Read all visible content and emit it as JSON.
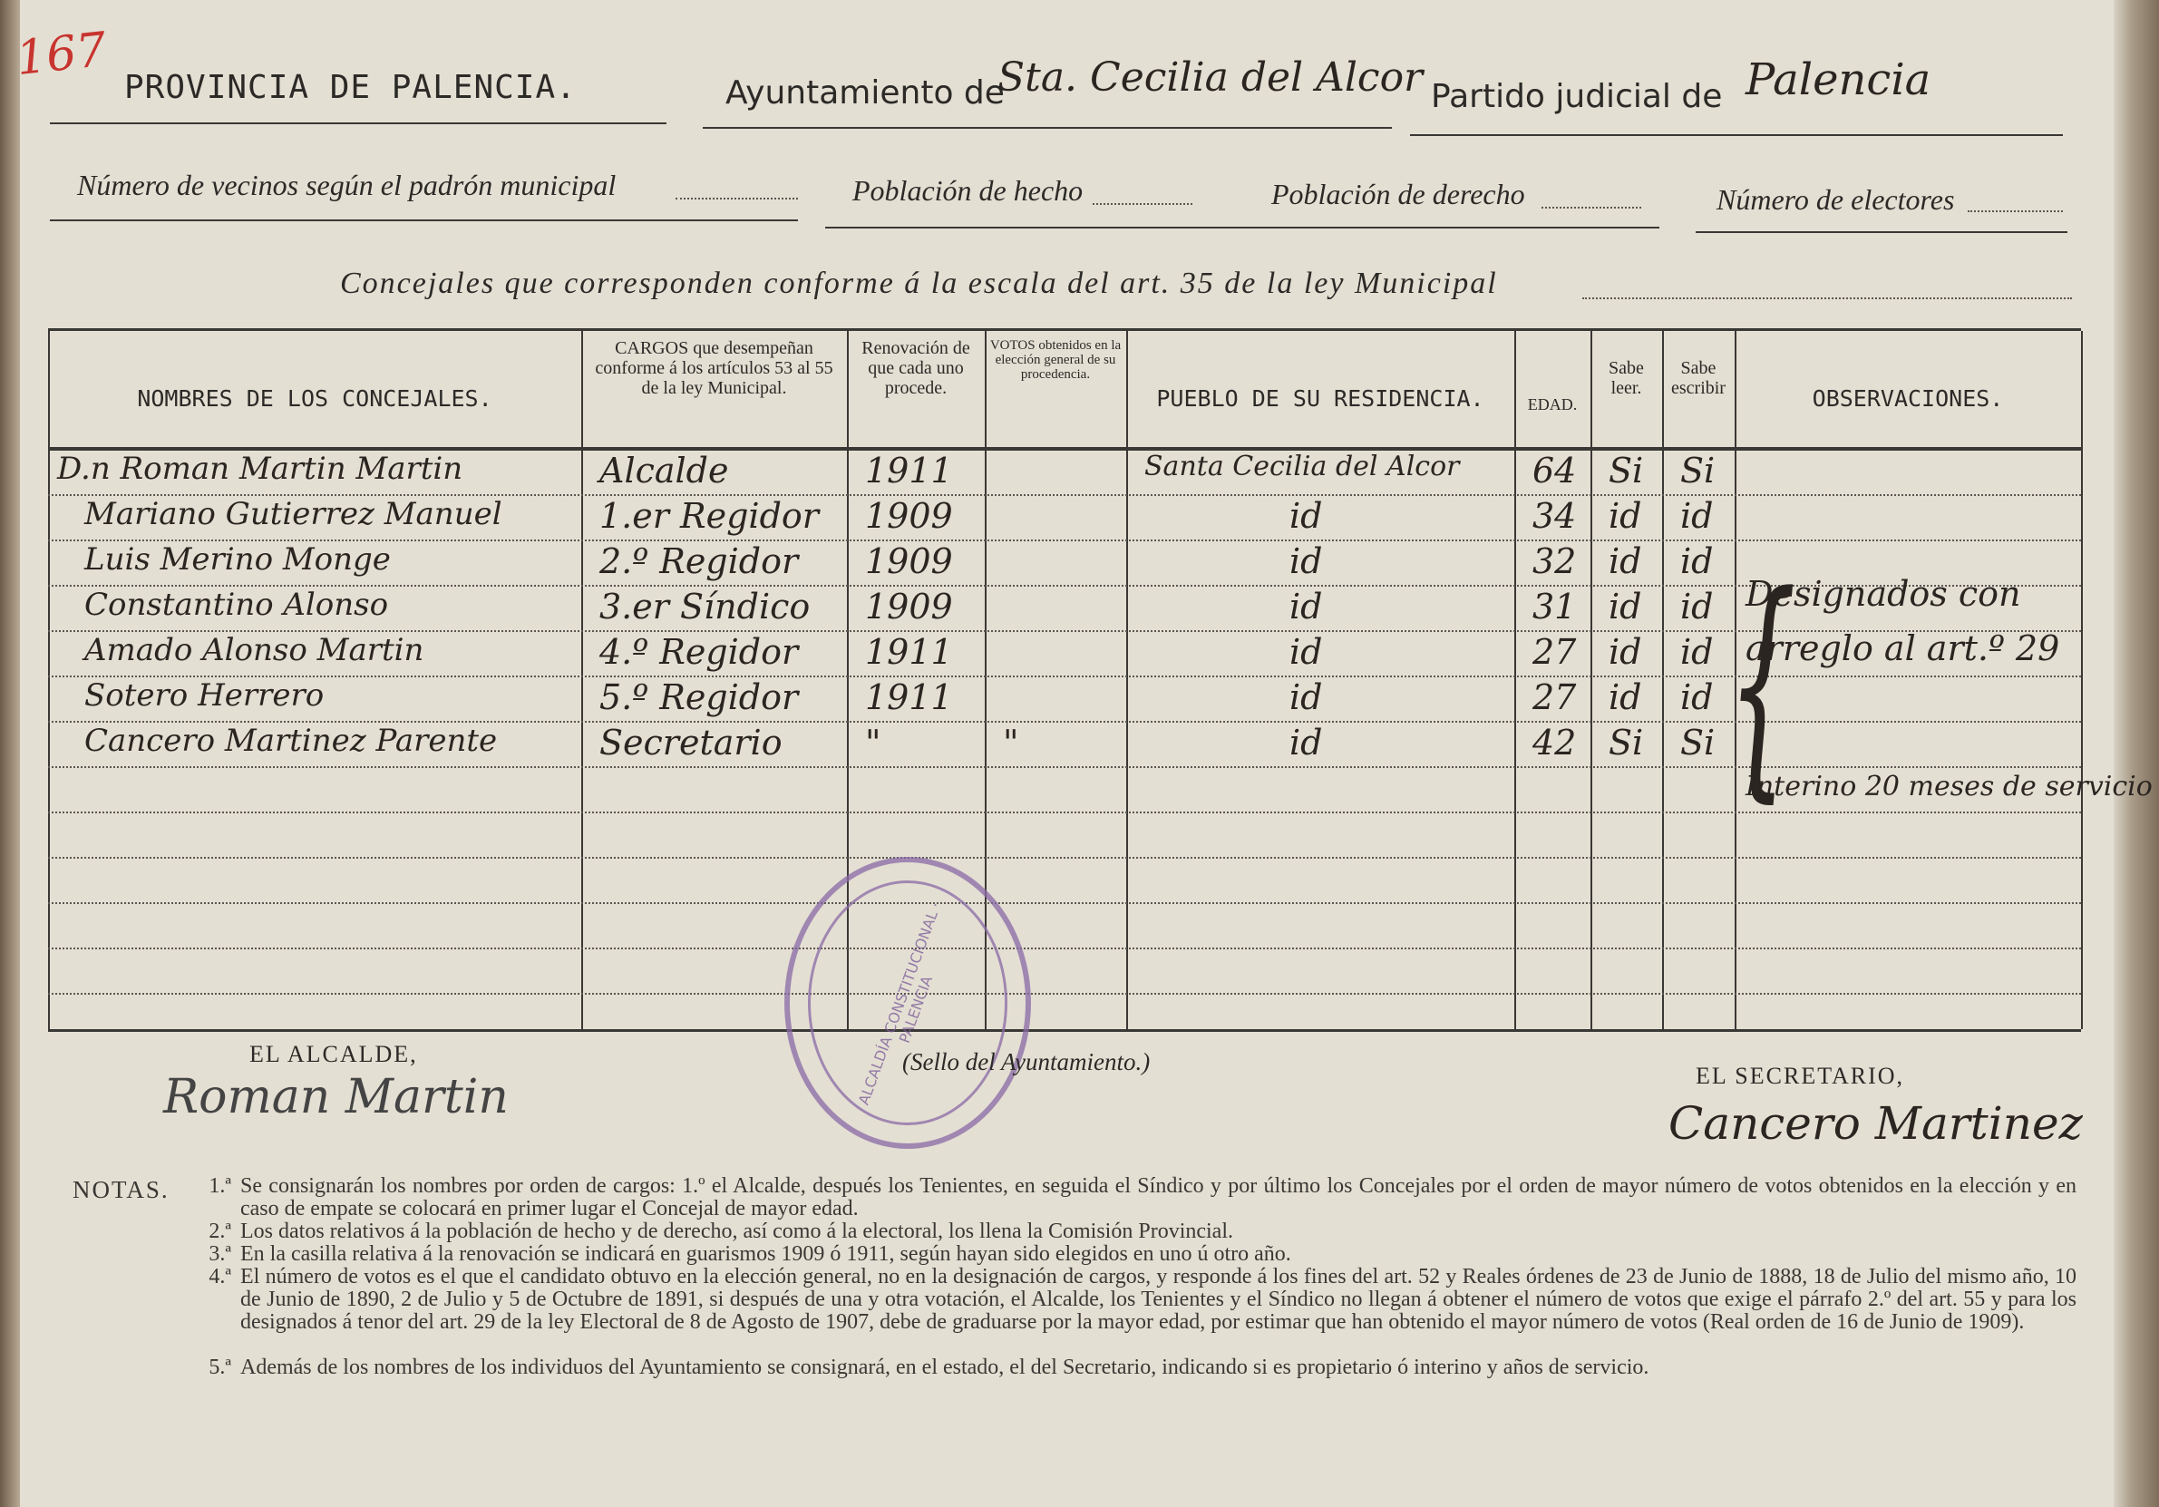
{
  "page_number": "167",
  "header": {
    "provincia": "PROVINCIA DE PALENCIA.",
    "ayuntamiento_label": "Ayuntamiento de",
    "ayuntamiento_value": "Sta. Cecilia del Alcor",
    "partido_label": "Partido judicial de",
    "partido_value": "Palencia",
    "vecinos_label": "Número de vecinos según el padrón municipal",
    "hecho_label": "Población de hecho",
    "derecho_label": "Población de derecho",
    "electores_label": "Número de electores",
    "concejales_label": "Concejales que corresponden conforme á la escala del art. 35 de la ley Municipal"
  },
  "table": {
    "columns": [
      "NOMBRES DE LOS CONCEJALES.",
      "CARGOS que desempeñan conforme á los artículos 53 al 55 de la ley Municipal.",
      "Renovación de que cada uno procede.",
      "VOTOS obtenidos en la elección general de su procedencia.",
      "PUEBLO DE SU RESIDENCIA.",
      "EDAD.",
      "Sabe leer.",
      "Sabe escribir",
      "OBSERVACIONES."
    ],
    "rows": [
      [
        "D.n Roman Martin Martin",
        "Alcalde",
        "1911",
        "",
        "Santa Cecilia del Alcor",
        "64",
        "Si",
        "Si"
      ],
      [
        "Mariano Gutierrez Manuel",
        "1.er Regidor",
        "1909",
        "",
        "id",
        "34",
        "id",
        "id"
      ],
      [
        "Luis Merino Monge",
        "2.º Regidor",
        "1909",
        "",
        "id",
        "32",
        "id",
        "id"
      ],
      [
        "Constantino Alonso",
        "3.er Síndico",
        "1909",
        "",
        "id",
        "31",
        "id",
        "id"
      ],
      [
        "Amado Alonso Martin",
        "4.º Regidor",
        "1911",
        "",
        "id",
        "27",
        "id",
        "id"
      ],
      [
        "Sotero Herrero",
        "5.º Regidor",
        "1911",
        "",
        "id",
        "27",
        "id",
        "id"
      ],
      [
        "Cancero Martinez Parente",
        "Secretario",
        "\"",
        "\"",
        "id",
        "42",
        "Si",
        "Si"
      ]
    ],
    "observation_bracket": "Designados con arreglo al art.º 29",
    "observation_secretary": "Interino 20 meses de servicio"
  },
  "signatures": {
    "alcalde_label": "EL ALCALDE,",
    "alcalde_signature": "Roman Martin",
    "sello_label": "(Sello del Ayuntamiento.)",
    "stamp_text": "ALCALDÍA CONSTITUCIONAL · PALENCIA",
    "secretario_label": "EL SECRETARIO,",
    "secretario_signature": "Cancero Martinez"
  },
  "notes": {
    "label": "NOTAS.",
    "items": [
      {
        "n": "1.ª",
        "text": "Se consignarán los nombres por orden de cargos: 1.º el Alcalde, después los Tenientes, en seguida el Síndico y por último los Concejales por el orden de mayor número de votos obtenidos en la elección y en caso de empate se colocará en primer lugar el Concejal de mayor edad."
      },
      {
        "n": "2.ª",
        "text": "Los datos relativos á la población de hecho y de derecho, así como á la electoral, los llena la Comisión Provincial."
      },
      {
        "n": "3.ª",
        "text": "En la casilla relativa á la renovación se indicará en guarismos 1909 ó 1911, según hayan sido elegidos en uno ú otro año."
      },
      {
        "n": "4.ª",
        "text": "El número de votos es el que el candidato obtuvo en la elección general, no en la designación de cargos, y responde á los fines del art. 52 y Reales órdenes de 23 de Junio de 1888, 18 de Julio del mismo año, 10 de Junio de 1890, 2 de Julio y 5 de Octubre de 1891, si después de una y otra votación, el Alcalde, los Tenientes y el Síndico no llegan á obtener el número de votos que exige el párrafo 2.º del art. 55 y para los designados á tenor del art. 29 de la ley Electoral de 8 de Agosto de 1907, debe de graduarse por la mayor edad, por estimar que han obtenido el mayor número de votos (Real orden de 16 de Junio de 1909)."
      },
      {
        "n": "5.ª",
        "text": "Además de los nombres de los individuos del Ayuntamiento se consignará, en el estado, el del Secretario, indicando si es propietario ó interino y años de servicio."
      }
    ]
  },
  "colors": {
    "paper": "#e4dfd3",
    "ink": "#2a2520",
    "stamp": "#8a6aa6",
    "page_number": "#c8342e"
  }
}
